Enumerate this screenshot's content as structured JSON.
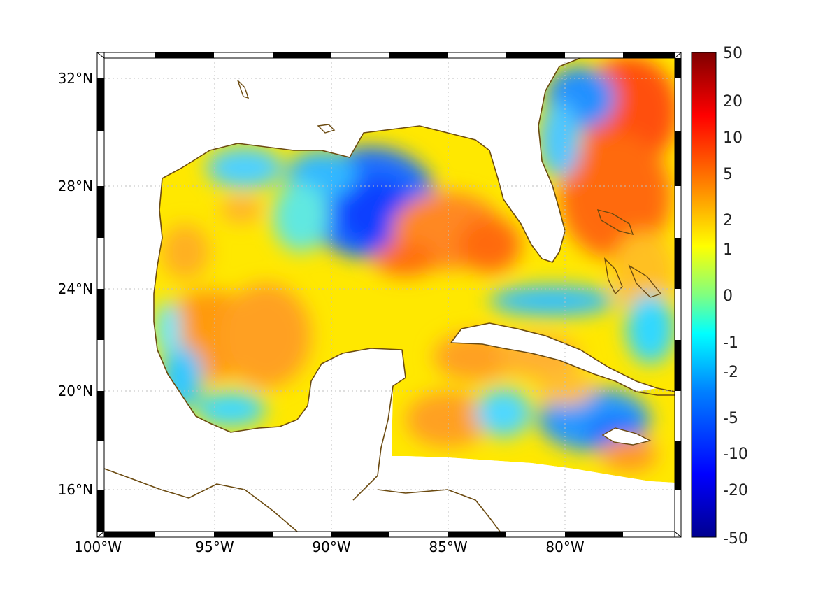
{
  "map": {
    "lat_labels": [
      "32°N",
      "28°N",
      "24°N",
      "20°N",
      "16°N"
    ],
    "lon_labels": [
      "100°W",
      "95°W",
      "90°W",
      "85°W",
      "80°W"
    ],
    "lat_values": [
      32,
      28,
      24,
      20,
      16
    ],
    "lon_values": [
      -100,
      -95,
      -90,
      -85,
      -80
    ],
    "extent": {
      "lon_min": -100,
      "lon_max": -75,
      "lat_min": 14.2,
      "lat_max": 33
    },
    "coastline_color": "#6b4a10"
  },
  "colorbar": {
    "ticks": [
      "50",
      "20",
      "10",
      "5",
      "2",
      "1",
      "0",
      "-1",
      "-2",
      "-5",
      "-10",
      "-20",
      "-50"
    ],
    "colors": [
      "#800000",
      "#ff0000",
      "#ff8000",
      "#ffff00",
      "#80ff80",
      "#00ffff",
      "#0080ff",
      "#0000ff",
      "#00008f"
    ]
  }
}
